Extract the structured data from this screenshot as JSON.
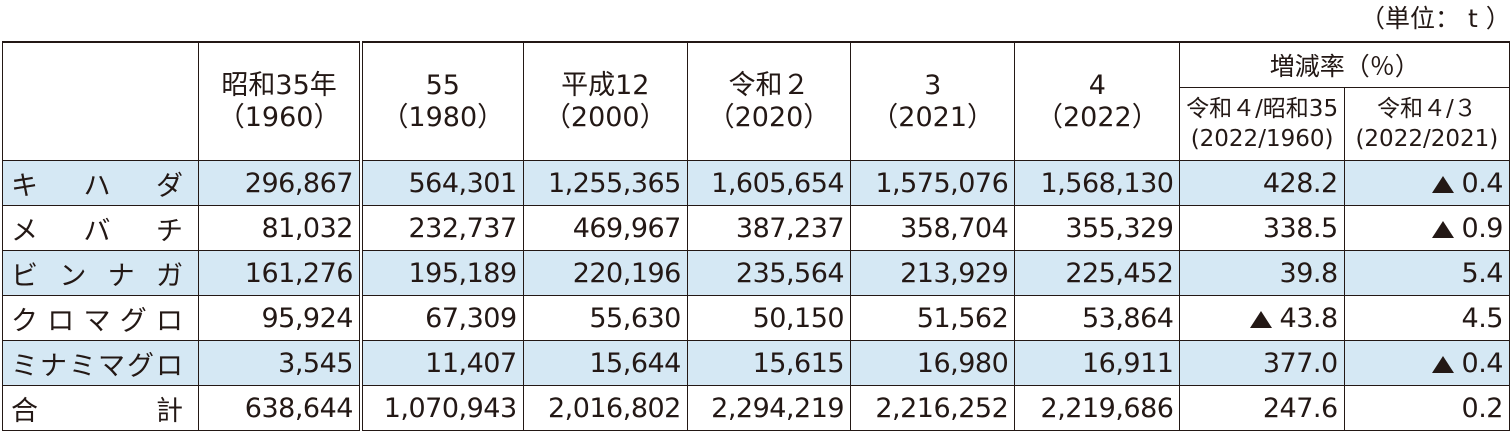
{
  "unit_label": "（単位： t ）",
  "header": {
    "years": [
      {
        "line1": "昭和35年",
        "line2": "（1960）"
      },
      {
        "line1": "55",
        "line2": "（1980）"
      },
      {
        "line1": "平成12",
        "line2": "（2000）"
      },
      {
        "line1": "令和２",
        "line2": "（2020）"
      },
      {
        "line1": "3",
        "line2": "（2021）"
      },
      {
        "line1": "4",
        "line2": "（2022）"
      }
    ],
    "rate_title": "増減率（％）",
    "rate_cols": [
      {
        "line1": "令和４/昭和35",
        "line2": "(2022/1960)"
      },
      {
        "line1": "令和４/３",
        "line2": "(2022/2021)"
      }
    ]
  },
  "rows": [
    {
      "name": [
        "キ",
        "ハ",
        "ダ"
      ],
      "values": [
        "296,867",
        "564,301",
        "1,255,365",
        "1,605,654",
        "1,575,076",
        "1,568,130"
      ],
      "rate1": {
        "neg": false,
        "value": "428.2"
      },
      "rate2": {
        "neg": true,
        "value": "0.4"
      }
    },
    {
      "name": [
        "メ",
        "バ",
        "チ"
      ],
      "values": [
        "81,032",
        "232,737",
        "469,967",
        "387,237",
        "358,704",
        "355,329"
      ],
      "rate1": {
        "neg": false,
        "value": "338.5"
      },
      "rate2": {
        "neg": true,
        "value": "0.9"
      }
    },
    {
      "name": [
        "ビ",
        "ン",
        "ナ",
        "ガ"
      ],
      "values": [
        "161,276",
        "195,189",
        "220,196",
        "235,564",
        "213,929",
        "225,452"
      ],
      "rate1": {
        "neg": false,
        "value": "39.8"
      },
      "rate2": {
        "neg": false,
        "value": "5.4"
      }
    },
    {
      "name": [
        "ク",
        "ロ",
        "マ",
        "グ",
        "ロ"
      ],
      "values": [
        "95,924",
        "67,309",
        "55,630",
        "50,150",
        "51,562",
        "53,864"
      ],
      "rate1": {
        "neg": true,
        "value": "43.8"
      },
      "rate2": {
        "neg": false,
        "value": "4.5"
      }
    },
    {
      "name": [
        "ミ",
        "ナ",
        "ミ",
        "マ",
        "グ",
        "ロ"
      ],
      "values": [
        "3,545",
        "11,407",
        "15,644",
        "15,615",
        "16,980",
        "16,911"
      ],
      "rate1": {
        "neg": false,
        "value": "377.0"
      },
      "rate2": {
        "neg": true,
        "value": "0.4"
      }
    },
    {
      "name": [
        "合",
        "計"
      ],
      "values": [
        "638,644",
        "1,070,943",
        "2,016,802",
        "2,294,219",
        "2,216,252",
        "2,219,686"
      ],
      "rate1": {
        "neg": false,
        "value": "247.6"
      },
      "rate2": {
        "neg": false,
        "value": "0.2"
      }
    }
  ],
  "negative_marker": "triangle-icon",
  "colors": {
    "shade": "#d5e8f4",
    "ink": "#231815"
  }
}
